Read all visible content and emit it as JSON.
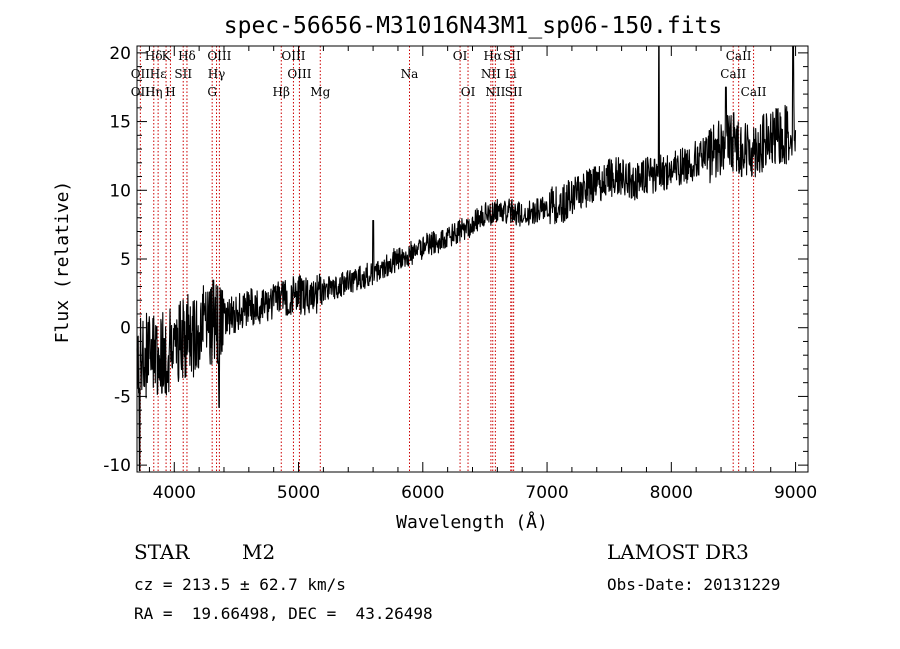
{
  "chart_data": {
    "type": "line",
    "title": "spec-56656-M31016N43M1_sp06-150.fits",
    "xlabel": "Wavelength (Å)",
    "ylabel": "Flux (relative)",
    "xlim": [
      3700,
      9100
    ],
    "ylim": [
      -10.5,
      20.5
    ],
    "x_ticks": [
      4000,
      5000,
      6000,
      7000,
      8000,
      9000
    ],
    "y_ticks": [
      -10,
      -5,
      0,
      5,
      10,
      15,
      20
    ],
    "spectrum_trend": [
      [
        3700,
        -1.5
      ],
      [
        3800,
        -2.2
      ],
      [
        3900,
        -2.0
      ],
      [
        4000,
        -1.2
      ],
      [
        4100,
        -0.8
      ],
      [
        4200,
        -0.3
      ],
      [
        4300,
        0.4
      ],
      [
        4400,
        0.7
      ],
      [
        4500,
        1.0
      ],
      [
        4600,
        1.5
      ],
      [
        4700,
        1.7
      ],
      [
        4800,
        2.0
      ],
      [
        4900,
        2.3
      ],
      [
        5000,
        2.4
      ],
      [
        5100,
        2.2
      ],
      [
        5200,
        2.7
      ],
      [
        5300,
        3.0
      ],
      [
        5400,
        3.3
      ],
      [
        5500,
        3.6
      ],
      [
        5600,
        4.0
      ],
      [
        5700,
        4.6
      ],
      [
        5800,
        5.0
      ],
      [
        5900,
        5.4
      ],
      [
        6000,
        5.9
      ],
      [
        6100,
        6.2
      ],
      [
        6200,
        6.5
      ],
      [
        6300,
        7.0
      ],
      [
        6400,
        7.6
      ],
      [
        6500,
        8.2
      ],
      [
        6600,
        8.5
      ],
      [
        6700,
        8.5
      ],
      [
        6800,
        8.2
      ],
      [
        6900,
        8.4
      ],
      [
        7000,
        9.0
      ],
      [
        7100,
        8.8
      ],
      [
        7200,
        9.6
      ],
      [
        7300,
        10.1
      ],
      [
        7400,
        10.4
      ],
      [
        7500,
        10.9
      ],
      [
        7600,
        11.1
      ],
      [
        7700,
        10.6
      ],
      [
        7800,
        11.0
      ],
      [
        7900,
        11.2
      ],
      [
        8000,
        11.4
      ],
      [
        8100,
        11.8
      ],
      [
        8200,
        12.2
      ],
      [
        8300,
        12.6
      ],
      [
        8400,
        13.2
      ],
      [
        8500,
        13.6
      ],
      [
        8600,
        12.8
      ],
      [
        8700,
        13.2
      ],
      [
        8800,
        13.6
      ],
      [
        8900,
        14.0
      ],
      [
        9000,
        14.2
      ]
    ],
    "spectral_lines": [
      {
        "label": "Hδ",
        "wavelength": 3835,
        "row": 0
      },
      {
        "label": "K",
        "wavelength": 3934,
        "row": 0
      },
      {
        "label": "Hδ",
        "wavelength": 4102,
        "row": 0
      },
      {
        "label": "OIII",
        "wavelength": 4363,
        "row": 0
      },
      {
        "label": "OIII",
        "wavelength": 4959,
        "row": 0
      },
      {
        "label": "OI",
        "wavelength": 6300,
        "row": 0
      },
      {
        "label": "Hα",
        "wavelength": 6563,
        "row": 0
      },
      {
        "label": "SII",
        "wavelength": 6717,
        "row": 0
      },
      {
        "label": "CaII",
        "wavelength": 8542,
        "row": 0
      },
      {
        "label": "OII",
        "wavelength": 3727,
        "row": 1
      },
      {
        "label": "Hε",
        "wavelength": 3870,
        "row": 1
      },
      {
        "label": "SII",
        "wavelength": 4072,
        "row": 1
      },
      {
        "label": "Hγ",
        "wavelength": 4340,
        "row": 1
      },
      {
        "label": "OIII",
        "wavelength": 5007,
        "row": 1
      },
      {
        "label": "Na",
        "wavelength": 5893,
        "row": 1
      },
      {
        "label": "NII",
        "wavelength": 6548,
        "row": 1
      },
      {
        "label": "Li",
        "wavelength": 6708,
        "row": 1
      },
      {
        "label": "CaII",
        "wavelength": 8498,
        "row": 1
      },
      {
        "label": "OII",
        "wavelength": 3727,
        "row": 2
      },
      {
        "label": "Hη",
        "wavelength": 3835,
        "row": 2
      },
      {
        "label": "H",
        "wavelength": 3969,
        "row": 2
      },
      {
        "label": "G",
        "wavelength": 4305,
        "row": 2
      },
      {
        "label": "Hβ",
        "wavelength": 4861,
        "row": 2
      },
      {
        "label": "Mg",
        "wavelength": 5175,
        "row": 2
      },
      {
        "label": "OI",
        "wavelength": 6364,
        "row": 2
      },
      {
        "label": "NII",
        "wavelength": 6584,
        "row": 2
      },
      {
        "label": "SII",
        "wavelength": 6731,
        "row": 2
      },
      {
        "label": "CaII",
        "wavelength": 8662,
        "row": 2
      }
    ]
  },
  "info": {
    "object_class": "STAR",
    "subclass": "M2",
    "survey": "LAMOST DR3",
    "redshift": "cz = 213.5 ± 62.7 km/s",
    "obs_date": "Obs-Date: 20131229",
    "coords": "RA =  19.66498, DEC =  43.26498"
  },
  "colors": {
    "spectrum": "#000000",
    "line_marker": "#cc0000",
    "axis": "#000000"
  }
}
